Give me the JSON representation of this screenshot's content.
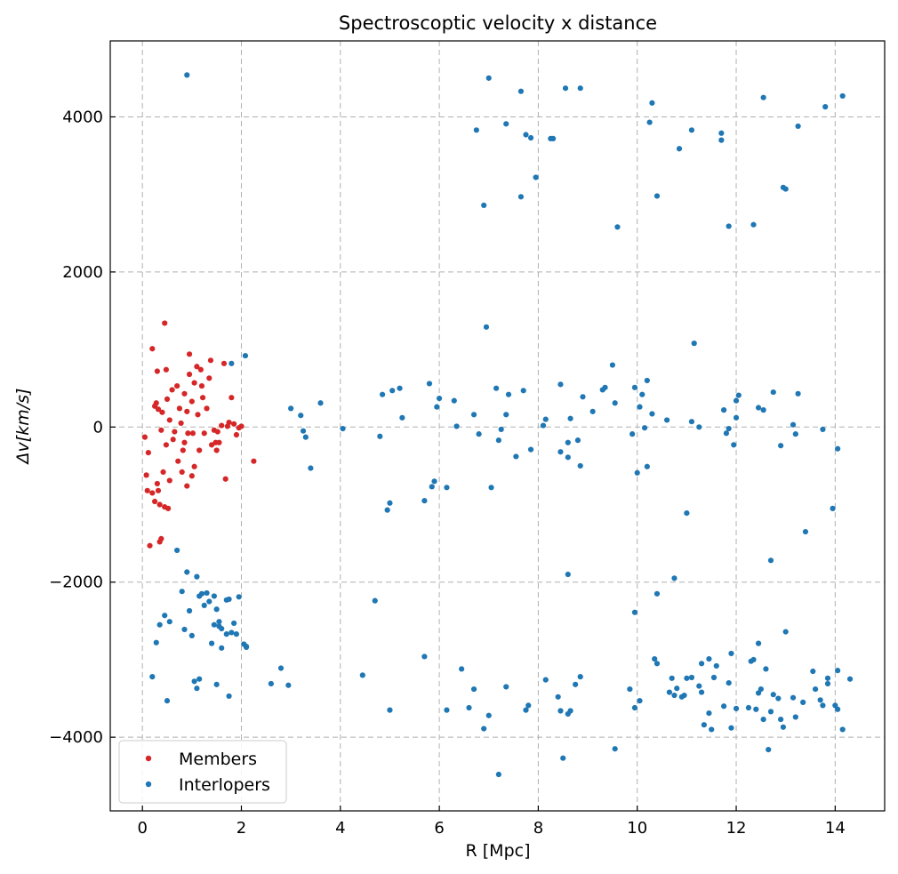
{
  "chart_data": {
    "type": "scatter",
    "title": "Spectroscoptic velocity x distance",
    "xlabel": "R [Mpc]",
    "ylabel": "Δv[km/s]",
    "xlim": [
      -0.65,
      15.0
    ],
    "ylim": [
      -4950,
      4980
    ],
    "xticks": [
      0,
      2,
      4,
      6,
      8,
      10,
      12,
      14
    ],
    "yticks": [
      -4000,
      -2000,
      0,
      2000,
      4000
    ],
    "grid": true,
    "legend_position": "lower-left",
    "series": [
      {
        "name": "Members",
        "color": "#d62728",
        "points": [
          [
            0.05,
            -130
          ],
          [
            0.08,
            -620
          ],
          [
            0.1,
            -820
          ],
          [
            0.12,
            -330
          ],
          [
            0.15,
            -1530
          ],
          [
            0.2,
            -850
          ],
          [
            0.2,
            1010
          ],
          [
            0.25,
            -960
          ],
          [
            0.25,
            270
          ],
          [
            0.28,
            310
          ],
          [
            0.3,
            -730
          ],
          [
            0.3,
            720
          ],
          [
            0.32,
            -820
          ],
          [
            0.32,
            230
          ],
          [
            0.35,
            -1000
          ],
          [
            0.35,
            -1480
          ],
          [
            0.38,
            -1440
          ],
          [
            0.38,
            -40
          ],
          [
            0.4,
            190
          ],
          [
            0.42,
            -580
          ],
          [
            0.45,
            -1030
          ],
          [
            0.45,
            1340
          ],
          [
            0.48,
            -230
          ],
          [
            0.48,
            740
          ],
          [
            0.5,
            360
          ],
          [
            0.52,
            -1050
          ],
          [
            0.55,
            -690
          ],
          [
            0.55,
            90
          ],
          [
            0.6,
            480
          ],
          [
            0.62,
            -160
          ],
          [
            0.65,
            -60
          ],
          [
            0.7,
            530
          ],
          [
            0.72,
            -440
          ],
          [
            0.75,
            240
          ],
          [
            0.78,
            50
          ],
          [
            0.8,
            -580
          ],
          [
            0.82,
            -300
          ],
          [
            0.85,
            -200
          ],
          [
            0.85,
            430
          ],
          [
            0.9,
            -760
          ],
          [
            0.9,
            200
          ],
          [
            0.92,
            -80
          ],
          [
            0.95,
            680
          ],
          [
            0.95,
            940
          ],
          [
            1.0,
            -630
          ],
          [
            1.0,
            330
          ],
          [
            1.02,
            -80
          ],
          [
            1.05,
            -510
          ],
          [
            1.05,
            570
          ],
          [
            1.1,
            780
          ],
          [
            1.12,
            160
          ],
          [
            1.15,
            -300
          ],
          [
            1.18,
            740
          ],
          [
            1.2,
            530
          ],
          [
            1.22,
            380
          ],
          [
            1.25,
            -80
          ],
          [
            1.3,
            240
          ],
          [
            1.35,
            630
          ],
          [
            1.38,
            860
          ],
          [
            1.4,
            -230
          ],
          [
            1.45,
            -40
          ],
          [
            1.48,
            -200
          ],
          [
            1.5,
            -300
          ],
          [
            1.52,
            -60
          ],
          [
            1.55,
            -200
          ],
          [
            1.6,
            20
          ],
          [
            1.65,
            820
          ],
          [
            1.68,
            -670
          ],
          [
            1.72,
            10
          ],
          [
            1.75,
            60
          ],
          [
            1.8,
            380
          ],
          [
            1.85,
            40
          ],
          [
            1.9,
            -100
          ],
          [
            1.95,
            -10
          ],
          [
            2.0,
            10
          ],
          [
            2.25,
            -440
          ]
        ]
      },
      {
        "name": "Interlopers",
        "color": "#1f77b4",
        "points": [
          [
            0.9,
            4540
          ],
          [
            2.08,
            920
          ],
          [
            1.8,
            820
          ],
          [
            3.0,
            240
          ],
          [
            3.2,
            150
          ],
          [
            3.25,
            -50
          ],
          [
            3.3,
            -130
          ],
          [
            3.4,
            -530
          ],
          [
            3.6,
            310
          ],
          [
            4.05,
            -20
          ],
          [
            4.8,
            -120
          ],
          [
            4.85,
            420
          ],
          [
            4.95,
            -1070
          ],
          [
            5.0,
            -980
          ],
          [
            5.05,
            470
          ],
          [
            5.2,
            500
          ],
          [
            5.25,
            120
          ],
          [
            5.7,
            -950
          ],
          [
            5.8,
            560
          ],
          [
            5.85,
            -770
          ],
          [
            5.9,
            -700
          ],
          [
            5.95,
            260
          ],
          [
            6.0,
            370
          ],
          [
            6.15,
            -780
          ],
          [
            6.3,
            340
          ],
          [
            6.35,
            10
          ],
          [
            6.7,
            160
          ],
          [
            6.8,
            -90
          ],
          [
            6.95,
            1290
          ],
          [
            7.05,
            -780
          ],
          [
            7.15,
            500
          ],
          [
            7.2,
            -170
          ],
          [
            7.25,
            -30
          ],
          [
            7.35,
            160
          ],
          [
            7.4,
            420
          ],
          [
            7.55,
            -380
          ],
          [
            7.7,
            470
          ],
          [
            7.85,
            -290
          ],
          [
            8.1,
            20
          ],
          [
            8.15,
            100
          ],
          [
            8.45,
            550
          ],
          [
            8.45,
            -320
          ],
          [
            8.6,
            -200
          ],
          [
            8.65,
            110
          ],
          [
            8.6,
            -390
          ],
          [
            8.8,
            -170
          ],
          [
            8.85,
            -500
          ],
          [
            8.9,
            390
          ],
          [
            9.1,
            200
          ],
          [
            9.3,
            480
          ],
          [
            9.35,
            510
          ],
          [
            9.5,
            800
          ],
          [
            9.55,
            310
          ],
          [
            9.9,
            -90
          ],
          [
            9.95,
            510
          ],
          [
            10.0,
            -590
          ],
          [
            10.05,
            260
          ],
          [
            10.1,
            420
          ],
          [
            10.15,
            -10
          ],
          [
            10.2,
            600
          ],
          [
            10.2,
            -510
          ],
          [
            10.3,
            170
          ],
          [
            10.6,
            90
          ],
          [
            11.0,
            -1110
          ],
          [
            11.1,
            70
          ],
          [
            11.15,
            1080
          ],
          [
            11.25,
            0
          ],
          [
            11.75,
            220
          ],
          [
            11.8,
            -80
          ],
          [
            11.85,
            -20
          ],
          [
            11.95,
            -230
          ],
          [
            12.0,
            120
          ],
          [
            12.0,
            340
          ],
          [
            12.05,
            410
          ],
          [
            12.45,
            250
          ],
          [
            12.55,
            220
          ],
          [
            12.75,
            450
          ],
          [
            12.9,
            -240
          ],
          [
            13.15,
            30
          ],
          [
            13.2,
            -90
          ],
          [
            13.25,
            430
          ],
          [
            13.75,
            -30
          ],
          [
            14.05,
            -280
          ],
          [
            13.95,
            -1050
          ],
          [
            13.4,
            -1350
          ],
          [
            12.7,
            -1720
          ],
          [
            10.4,
            -2150
          ],
          [
            9.95,
            -2390
          ],
          [
            8.6,
            -1900
          ],
          [
            10.75,
            -1950
          ],
          [
            6.75,
            3830
          ],
          [
            7.0,
            4500
          ],
          [
            7.35,
            3910
          ],
          [
            7.65,
            4330
          ],
          [
            7.75,
            3770
          ],
          [
            7.85,
            3730
          ],
          [
            7.95,
            3220
          ],
          [
            8.25,
            3720
          ],
          [
            8.3,
            3720
          ],
          [
            8.55,
            4370
          ],
          [
            8.85,
            4370
          ],
          [
            6.9,
            2860
          ],
          [
            7.65,
            2970
          ],
          [
            9.6,
            2580
          ],
          [
            10.25,
            3930
          ],
          [
            10.3,
            4180
          ],
          [
            10.4,
            2980
          ],
          [
            10.85,
            3590
          ],
          [
            11.1,
            3830
          ],
          [
            11.7,
            3790
          ],
          [
            11.7,
            3700
          ],
          [
            11.85,
            2590
          ],
          [
            12.35,
            2610
          ],
          [
            12.55,
            4250
          ],
          [
            12.95,
            3090
          ],
          [
            13.0,
            3070
          ],
          [
            13.25,
            3880
          ],
          [
            13.8,
            4130
          ],
          [
            14.15,
            4270
          ],
          [
            0.2,
            -3220
          ],
          [
            0.28,
            -2780
          ],
          [
            0.35,
            -2550
          ],
          [
            0.45,
            -2430
          ],
          [
            0.5,
            -3530
          ],
          [
            0.55,
            -2510
          ],
          [
            0.7,
            -1590
          ],
          [
            0.8,
            -2120
          ],
          [
            0.85,
            -2610
          ],
          [
            0.9,
            -1870
          ],
          [
            0.95,
            -2370
          ],
          [
            1.0,
            -2690
          ],
          [
            1.05,
            -3280
          ],
          [
            1.1,
            -1930
          ],
          [
            1.1,
            -3370
          ],
          [
            1.15,
            -2180
          ],
          [
            1.15,
            -3250
          ],
          [
            1.2,
            -2150
          ],
          [
            1.25,
            -2300
          ],
          [
            1.3,
            -2140
          ],
          [
            1.35,
            -2250
          ],
          [
            1.4,
            -2790
          ],
          [
            1.45,
            -2550
          ],
          [
            1.45,
            -2180
          ],
          [
            1.5,
            -3320
          ],
          [
            1.5,
            -2350
          ],
          [
            1.55,
            -2570
          ],
          [
            1.55,
            -2510
          ],
          [
            1.6,
            -2850
          ],
          [
            1.6,
            -2600
          ],
          [
            1.7,
            -2230
          ],
          [
            1.7,
            -2670
          ],
          [
            1.75,
            -2220
          ],
          [
            1.75,
            -3470
          ],
          [
            1.8,
            -2650
          ],
          [
            1.85,
            -2530
          ],
          [
            1.9,
            -2670
          ],
          [
            1.95,
            -2190
          ],
          [
            2.05,
            -2800
          ],
          [
            2.1,
            -2830
          ],
          [
            2.1,
            -2840
          ],
          [
            2.6,
            -3310
          ],
          [
            2.8,
            -3110
          ],
          [
            2.95,
            -3330
          ],
          [
            4.45,
            -3200
          ],
          [
            4.7,
            -2240
          ],
          [
            5.0,
            -3650
          ],
          [
            5.7,
            -2960
          ],
          [
            6.15,
            -3650
          ],
          [
            6.45,
            -3120
          ],
          [
            6.6,
            -3620
          ],
          [
            6.7,
            -3380
          ],
          [
            6.9,
            -3890
          ],
          [
            7.0,
            -3720
          ],
          [
            7.2,
            -4480
          ],
          [
            7.35,
            -3350
          ],
          [
            7.75,
            -3650
          ],
          [
            7.8,
            -3590
          ],
          [
            8.15,
            -3260
          ],
          [
            8.4,
            -3480
          ],
          [
            8.45,
            -3660
          ],
          [
            8.5,
            -4270
          ],
          [
            8.6,
            -3700
          ],
          [
            8.65,
            -3660
          ],
          [
            8.75,
            -3320
          ],
          [
            8.85,
            -3220
          ],
          [
            9.55,
            -4150
          ],
          [
            9.85,
            -3380
          ],
          [
            9.95,
            -3620
          ],
          [
            10.05,
            -3530
          ],
          [
            10.35,
            -2990
          ],
          [
            10.4,
            -3050
          ],
          [
            10.65,
            -3420
          ],
          [
            10.7,
            -3240
          ],
          [
            10.75,
            -3460
          ],
          [
            10.8,
            -3370
          ],
          [
            10.9,
            -3480
          ],
          [
            10.95,
            -3460
          ],
          [
            11.0,
            -3240
          ],
          [
            11.1,
            -3230
          ],
          [
            11.25,
            -3340
          ],
          [
            11.3,
            -3420
          ],
          [
            11.3,
            -3050
          ],
          [
            11.35,
            -3840
          ],
          [
            11.45,
            -2990
          ],
          [
            11.45,
            -3690
          ],
          [
            11.5,
            -3900
          ],
          [
            11.55,
            -3230
          ],
          [
            11.6,
            -3080
          ],
          [
            11.75,
            -3600
          ],
          [
            11.85,
            -3300
          ],
          [
            11.9,
            -2920
          ],
          [
            11.9,
            -3880
          ],
          [
            12.0,
            -3630
          ],
          [
            12.25,
            -3620
          ],
          [
            12.3,
            -3020
          ],
          [
            12.35,
            -3000
          ],
          [
            12.4,
            -3640
          ],
          [
            12.45,
            -3430
          ],
          [
            12.45,
            -2790
          ],
          [
            12.5,
            -3380
          ],
          [
            12.55,
            -3770
          ],
          [
            12.6,
            -3120
          ],
          [
            12.65,
            -4160
          ],
          [
            12.7,
            -3670
          ],
          [
            12.75,
            -3450
          ],
          [
            12.85,
            -3500
          ],
          [
            12.9,
            -3770
          ],
          [
            12.95,
            -3870
          ],
          [
            13.0,
            -2640
          ],
          [
            13.15,
            -3490
          ],
          [
            13.2,
            -3740
          ],
          [
            13.35,
            -3550
          ],
          [
            13.55,
            -3150
          ],
          [
            13.6,
            -3380
          ],
          [
            13.7,
            -3520
          ],
          [
            13.75,
            -3590
          ],
          [
            13.85,
            -3310
          ],
          [
            13.85,
            -3240
          ],
          [
            14.0,
            -3590
          ],
          [
            14.05,
            -3640
          ],
          [
            14.05,
            -3140
          ],
          [
            14.15,
            -3900
          ],
          [
            14.3,
            -3250
          ]
        ]
      }
    ]
  }
}
